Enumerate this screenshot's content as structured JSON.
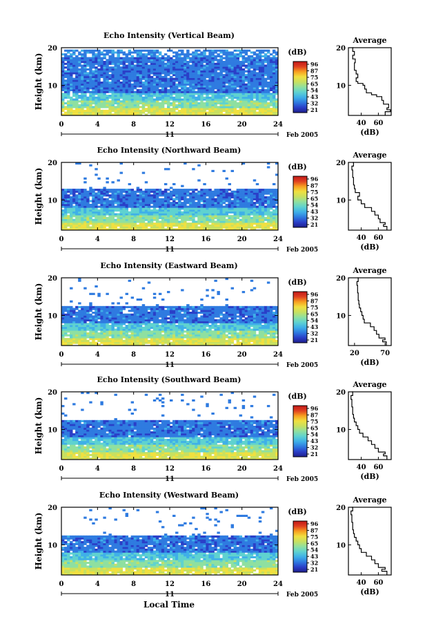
{
  "x_axis_label": "Local Time",
  "date_label": "Feb 2005",
  "day_label": "11",
  "panel_height_label": "Height (km)",
  "colorbar_unit": "(dB)",
  "avg_title": "Average",
  "avg_xlabel": "(dB)",
  "colormap": [
    "#1f1f8c",
    "#2a3fc8",
    "#2f7be0",
    "#3fb0e8",
    "#5fd2d0",
    "#8fe0a0",
    "#c8e060",
    "#f0e040",
    "#f8a020",
    "#e04020",
    "#c01818"
  ],
  "chart_data": [
    {
      "type": "heatmap",
      "title": "Echo Intensity (Vertical Beam)",
      "xlabel": "",
      "ylabel": "Height (km)",
      "x_ticks": [
        0,
        4,
        8,
        12,
        16,
        20,
        24
      ],
      "x_range": [
        0,
        24
      ],
      "y_ticks": [
        10,
        20
      ],
      "y_range": [
        2,
        20
      ],
      "colorbar_ticks": [
        96,
        87,
        75,
        65,
        54,
        43,
        32,
        21
      ],
      "avg_x_ticks": [
        40,
        60
      ],
      "avg_x_range": [
        25,
        75
      ],
      "avg_profile_height_km": [
        2.5,
        3,
        3.5,
        4,
        5,
        6,
        7,
        7.5,
        8,
        9,
        10,
        10.5,
        11,
        12,
        13,
        14,
        16,
        17,
        18,
        19,
        20
      ],
      "avg_profile_db": [
        68,
        74,
        70,
        72,
        66,
        64,
        58,
        52,
        46,
        44,
        42,
        36,
        34,
        36,
        34,
        32,
        33,
        30,
        32,
        30,
        31
      ]
    },
    {
      "type": "heatmap",
      "title": "Echo Intensity (Northward Beam)",
      "xlabel": "",
      "ylabel": "Height (km)",
      "x_ticks": [
        0,
        4,
        8,
        12,
        16,
        20,
        24
      ],
      "x_range": [
        0,
        24
      ],
      "y_ticks": [
        10,
        20
      ],
      "y_range": [
        2,
        20
      ],
      "colorbar_ticks": [
        96,
        87,
        75,
        65,
        54,
        43,
        32,
        21
      ],
      "avg_x_ticks": [
        40,
        60
      ],
      "avg_x_range": [
        25,
        75
      ],
      "avg_profile_height_km": [
        2.5,
        3,
        3.5,
        4,
        5,
        6,
        7,
        8,
        9,
        10,
        11,
        12,
        13,
        14,
        16,
        18,
        19,
        20
      ],
      "avg_profile_db": [
        70,
        66,
        68,
        62,
        60,
        56,
        52,
        44,
        40,
        36,
        38,
        33,
        32,
        31,
        30,
        29,
        31,
        30
      ]
    },
    {
      "type": "heatmap",
      "title": "Echo Intensity (Eastward Beam)",
      "xlabel": "",
      "ylabel": "Height (km)",
      "x_ticks": [
        0,
        4,
        8,
        12,
        16,
        20,
        24
      ],
      "x_range": [
        0,
        24
      ],
      "y_ticks": [
        10,
        20
      ],
      "y_range": [
        2,
        20
      ],
      "colorbar_ticks": [
        96,
        87,
        75,
        65,
        54,
        43,
        32,
        21
      ],
      "avg_x_ticks": [
        20,
        70
      ],
      "avg_x_range": [
        10,
        80
      ],
      "avg_profile_height_km": [
        2.5,
        3,
        3.5,
        4,
        5,
        6,
        7,
        8,
        9,
        10,
        11,
        12,
        13,
        14,
        16,
        18,
        19,
        20
      ],
      "avg_profile_db": [
        72,
        66,
        70,
        60,
        56,
        52,
        46,
        36,
        34,
        32,
        30,
        28,
        27,
        26,
        25,
        24,
        26,
        25
      ]
    },
    {
      "type": "heatmap",
      "title": "Echo Intensity (Southward Beam)",
      "xlabel": "",
      "ylabel": "Height (km)",
      "x_ticks": [
        0,
        4,
        8,
        12,
        16,
        20,
        24
      ],
      "x_range": [
        0,
        24
      ],
      "y_ticks": [
        10,
        20
      ],
      "y_range": [
        2,
        20
      ],
      "colorbar_ticks": [
        96,
        87,
        75,
        65,
        54,
        43,
        32,
        21
      ],
      "avg_x_ticks": [
        40,
        60
      ],
      "avg_x_range": [
        25,
        75
      ],
      "avg_profile_height_km": [
        2.5,
        3,
        3.5,
        4,
        5,
        6,
        7,
        8,
        9,
        10,
        11,
        12,
        13,
        14,
        16,
        18,
        19,
        20
      ],
      "avg_profile_db": [
        70,
        66,
        68,
        60,
        56,
        52,
        48,
        42,
        38,
        36,
        34,
        32,
        31,
        30,
        29,
        28,
        30,
        29
      ]
    },
    {
      "type": "heatmap",
      "title": "Echo Intensity (Westward Beam)",
      "xlabel": "",
      "ylabel": "Height (km)",
      "x_ticks": [
        0,
        4,
        8,
        12,
        16,
        20,
        24
      ],
      "x_range": [
        0,
        24
      ],
      "y_ticks": [
        10,
        20
      ],
      "y_range": [
        2,
        20
      ],
      "colorbar_ticks": [
        96,
        87,
        75,
        65,
        54,
        43,
        32,
        21
      ],
      "avg_x_ticks": [
        40,
        60
      ],
      "avg_x_range": [
        25,
        75
      ],
      "avg_profile_height_km": [
        2.5,
        3,
        3.5,
        4,
        5,
        6,
        7,
        8,
        9,
        10,
        11,
        12,
        13,
        14,
        16,
        18,
        19,
        20
      ],
      "avg_profile_db": [
        70,
        64,
        68,
        60,
        56,
        52,
        46,
        40,
        38,
        36,
        34,
        32,
        31,
        30,
        29,
        28,
        30,
        29
      ]
    }
  ]
}
